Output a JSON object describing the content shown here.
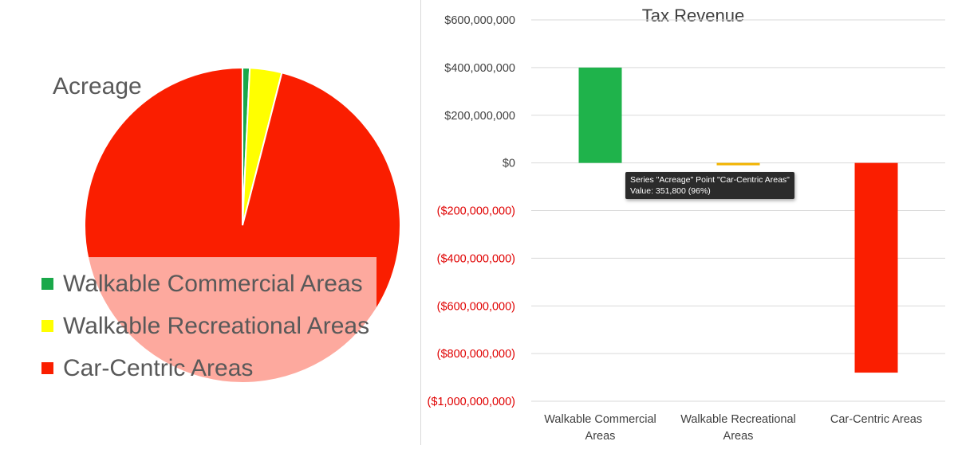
{
  "chart_data": [
    {
      "type": "pie",
      "title": "Acreage",
      "series_name": "Acreage",
      "categories": [
        "Walkable Commercial Areas",
        "Walkable Recreational Areas",
        "Car-Centric Areas"
      ],
      "values": [
        2700,
        12000,
        351800
      ],
      "colors": [
        "#1aa84a",
        "#ffff00",
        "#fa1e00"
      ],
      "legend": "bottom-left",
      "tooltip": {
        "line1": "Series \"Acreage\" Point \"Car-Centric Areas\"",
        "line2": "Value: 351,800 (96%)"
      }
    },
    {
      "type": "bar",
      "title": "Tax Revenue",
      "categories": [
        "Walkable Commercial Areas",
        "Walkable Recreational Areas",
        "Car-Centric Areas"
      ],
      "category_labels": [
        [
          "Walkable Commercial",
          "Areas"
        ],
        [
          "Walkable Recreational",
          "Areas"
        ],
        [
          "Car-Centric Areas"
        ]
      ],
      "values": [
        400000000,
        -10000000,
        -880000000
      ],
      "colors": [
        "#1fb34b",
        "#f2b400",
        "#fa1e00"
      ],
      "ylim": [
        -1000000000,
        600000000
      ],
      "yticks": [
        600000000,
        400000000,
        200000000,
        0,
        -200000000,
        -400000000,
        -600000000,
        -800000000,
        -1000000000
      ],
      "ytick_labels": [
        "$600,000,000",
        "$400,000,000",
        "$200,000,000",
        "$0",
        "($200,000,000)",
        "($400,000,000)",
        "($600,000,000)",
        "($800,000,000)",
        "($1,000,000,000)"
      ],
      "negative_label_color": "#e00000",
      "grid": true
    }
  ]
}
